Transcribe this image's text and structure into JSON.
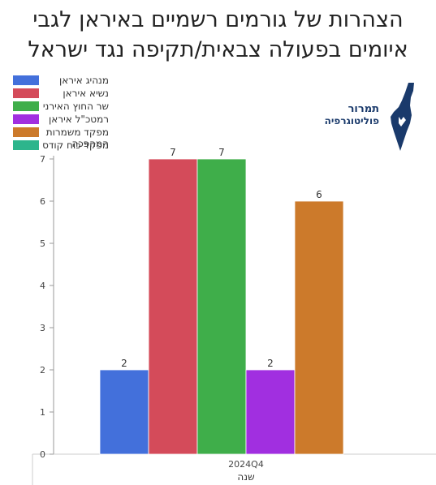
{
  "title_line1": "הצהרות של גורמים רשמיים באיראן לגבי",
  "title_line2": "איומים בפעולה צבאית/תקיפה נגד ישראל",
  "logo": {
    "line1": "תמרור",
    "line2": "פוליטוגרפיה"
  },
  "colors": {
    "series": [
      "#4370db",
      "#d44b5a",
      "#3fae4a",
      "#a12fe0",
      "#cc7a2b",
      "#2db58c"
    ]
  },
  "chart_data": {
    "type": "bar",
    "categories": [
      "2024Q4"
    ],
    "xlabel": "שנה",
    "ylabel": "",
    "ylim": [
      0,
      7
    ],
    "yticks": [
      0,
      1,
      2,
      3,
      4,
      5,
      6,
      7
    ],
    "legend_position": "top-left",
    "grid": false,
    "series": [
      {
        "name": "מנהיג איראן",
        "values": [
          2
        ]
      },
      {
        "name": "נשיא איראן",
        "values": [
          7
        ]
      },
      {
        "name": "שר החוץ האירני",
        "values": [
          7
        ]
      },
      {
        "name": "רמטכ\"ל איראן",
        "values": [
          2
        ]
      },
      {
        "name": "מפקד משמרות המהפכה",
        "values": [
          6
        ]
      },
      {
        "name": "מפקד כוח קודס",
        "values": [
          0
        ]
      }
    ]
  }
}
